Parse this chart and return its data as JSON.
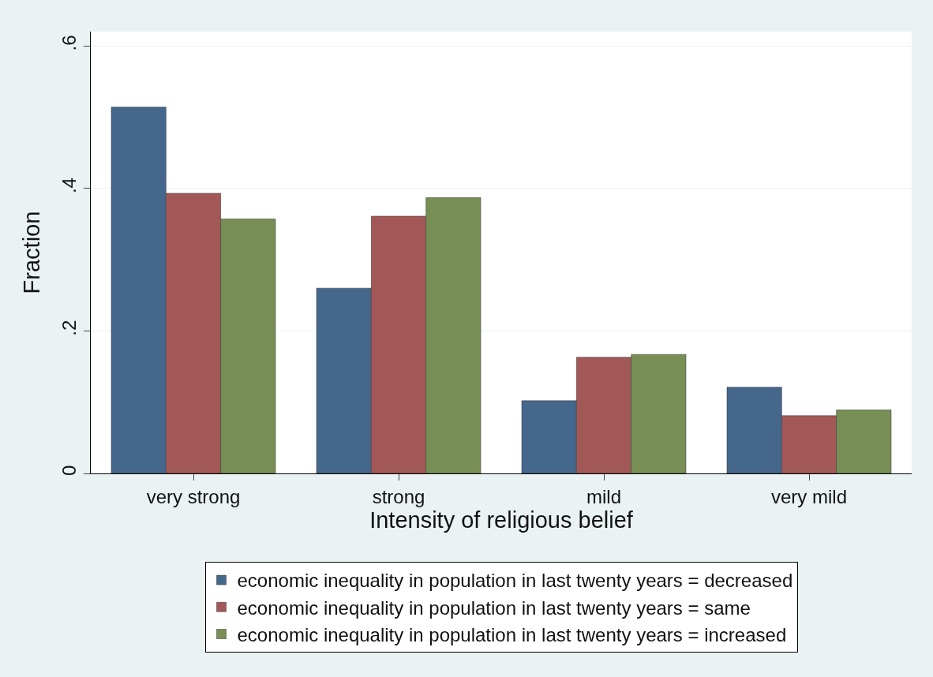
{
  "chart_data": {
    "type": "bar",
    "xlabel": "Intensity of religious belief",
    "ylabel": "Fraction",
    "categories": [
      "very strong",
      "strong",
      "mild",
      "very mild"
    ],
    "series": [
      {
        "name": "economic inequality in population in last twenty years = decreased",
        "color": "#46678c",
        "values": [
          0.514,
          0.26,
          0.102,
          0.121
        ]
      },
      {
        "name": "economic inequality in population in last twenty years = same",
        "color": "#a35858",
        "values": [
          0.393,
          0.361,
          0.163,
          0.081
        ]
      },
      {
        "name": "economic inequality in population in last twenty years = increased",
        "color": "#778f55",
        "values": [
          0.357,
          0.387,
          0.167,
          0.089
        ]
      }
    ],
    "ylim": [
      0,
      0.62
    ],
    "yticks": [
      {
        "value": 0,
        "label": "0"
      },
      {
        "value": 0.2,
        "label": ".2"
      },
      {
        "value": 0.4,
        "label": ".4"
      },
      {
        "value": 0.6,
        "label": ".6"
      }
    ],
    "grid": "y",
    "legend": "bottom"
  }
}
